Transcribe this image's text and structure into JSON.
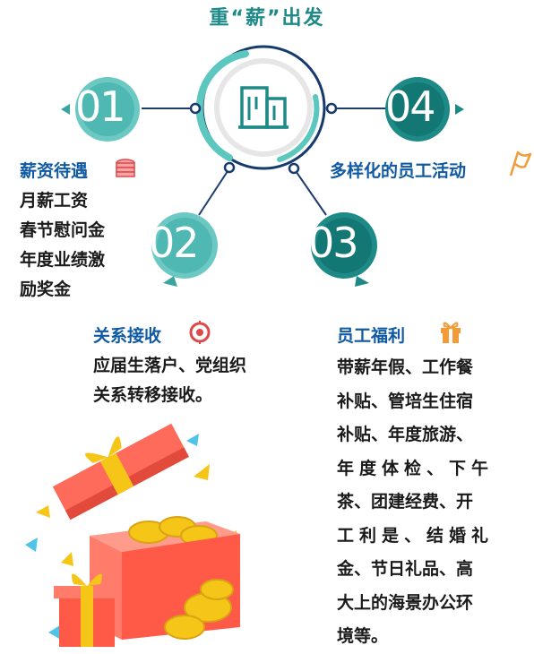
{
  "title": "重“薪”出发",
  "colors": {
    "teal": "#1e8a87",
    "teal_light": "#5bc7be",
    "navy": "#163a6b",
    "blue_text": "#0f5aa3",
    "orange": "#f29b38",
    "red": "#e04848"
  },
  "center_icon": "building-icon",
  "nodes": [
    {
      "num": "01",
      "heading": "薪资待遇",
      "icon": "coins-icon",
      "lines": [
        "月薪工资",
        "春节慰问金",
        "年度业绩激",
        "励奖金"
      ]
    },
    {
      "num": "02",
      "heading": "关系接收",
      "icon": "target-icon",
      "lines": [
        "应届生落户、党组织",
        "关系转移接收。"
      ]
    },
    {
      "num": "03",
      "heading": "员工福利",
      "icon": "gift-icon",
      "lines": [
        "带薪年假、工作餐",
        "补贴、管培生住宿",
        "补贴、年度旅游、",
        "年度体检、下午",
        "茶、团建经费、开",
        "工利是、结婚礼",
        "金、节日礼品、高",
        "大上的海景办公环",
        "境等。"
      ]
    },
    {
      "num": "04",
      "heading": "多样化的员工活动",
      "icon": "flag-icon",
      "lines": []
    }
  ]
}
